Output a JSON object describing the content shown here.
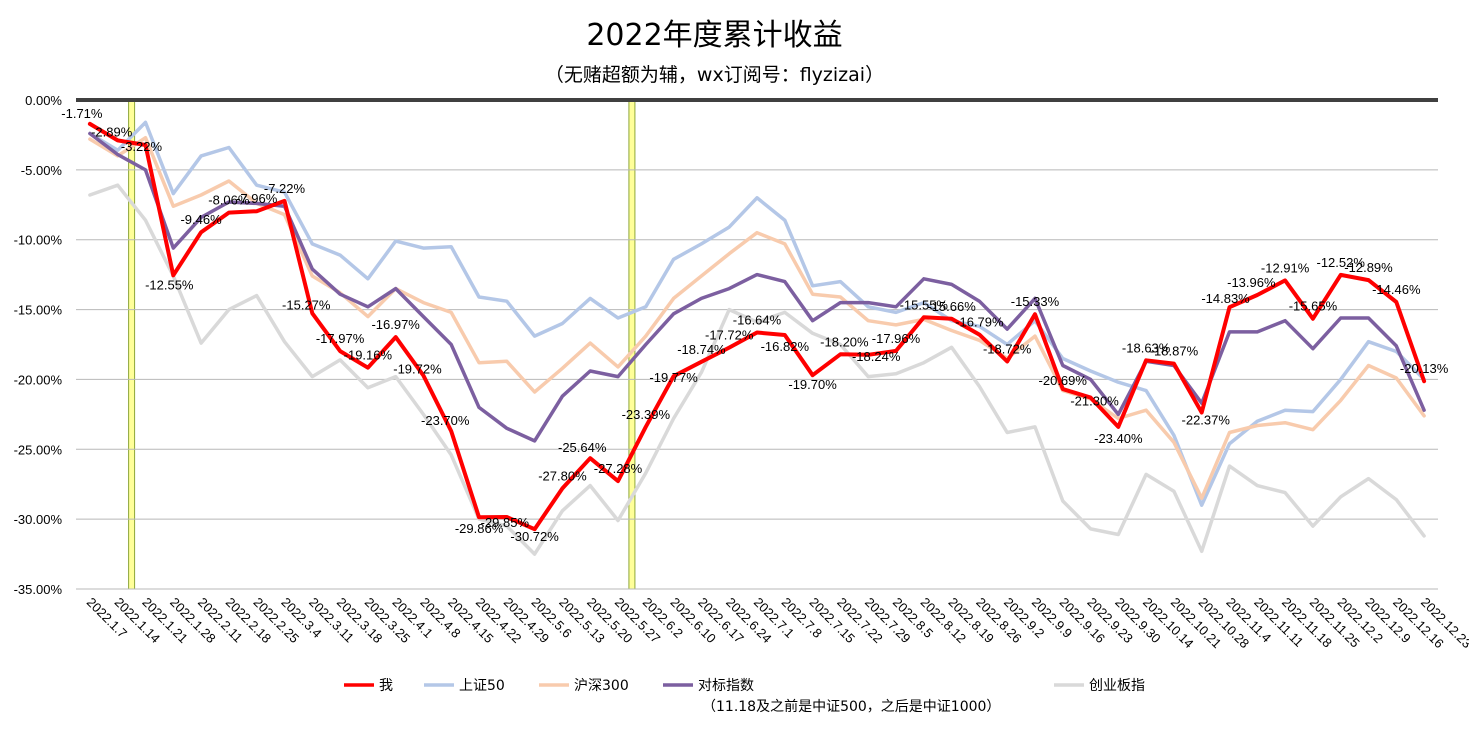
{
  "title": "2022年度累计收益",
  "subtitle": "（无赌超额为辅，wx订阅号：flyzizai）",
  "legend_note": "（11.18及之前是中证500，之后是中证1000）",
  "colors": {
    "me": "#ff0000",
    "sse50": "#b4c7e7",
    "hs300": "#f8cbad",
    "benchmark": "#7c5fa0",
    "chinext": "#d9d9d9",
    "highlight_fill": "#ffff99",
    "highlight_stroke": "#8ea63a",
    "grid": "#b8b8b8",
    "top_axis": "#404040"
  },
  "chart_data": {
    "type": "line",
    "title": "2022年度累计收益",
    "ylim": [
      -35,
      0
    ],
    "yticks": [
      "0.00%",
      "-5.00%",
      "-10.00%",
      "-15.00%",
      "-20.00%",
      "-25.00%",
      "-30.00%",
      "-35.00%"
    ],
    "grid": true,
    "legend_position": "bottom",
    "x": [
      "2022.1.7",
      "2022.1.14",
      "2022.1.21",
      "2022.1.28",
      "2022.2.11",
      "2022.2.18",
      "2022.2.25",
      "2022.3.4",
      "2022.3.11",
      "2022.3.18",
      "2022.3.25",
      "2022.4.1",
      "2022.4.8",
      "2022.4.15",
      "2022.4.22",
      "2022.4.29",
      "2022.5.6",
      "2022.5.13",
      "2022.5.20",
      "2022.5.27",
      "2022.6.2",
      "2022.6.10",
      "2022.6.17",
      "2022.6.24",
      "2022.7.1",
      "2022.7.8",
      "2022.7.15",
      "2022.7.22",
      "2022.7.29",
      "2022.8.5",
      "2022.8.12",
      "2022.8.19",
      "2022.8.26",
      "2022.9.2",
      "2022.9.9",
      "2022.9.16",
      "2022.9.23",
      "2022.9.30",
      "2022.10.14",
      "2022.10.21",
      "2022.10.28",
      "2022.11.4",
      "2022.11.11",
      "2022.11.18",
      "2022.11.25",
      "2022.12.2",
      "2022.12.9",
      "2022.12.16",
      "2022.12.23"
    ],
    "highlight_x": [
      "2022.1.21",
      "2022.6.2"
    ],
    "series": [
      {
        "name": "上证50",
        "key": "sse50",
        "values": [
          -2.4,
          -3.6,
          -1.6,
          -6.7,
          -4.0,
          -3.4,
          -6.1,
          -6.6,
          -10.3,
          -11.1,
          -12.8,
          -10.1,
          -10.6,
          -10.5,
          -14.1,
          -14.4,
          -16.9,
          -16.0,
          -14.2,
          -15.6,
          -14.8,
          -11.4,
          -10.3,
          -9.1,
          -7.0,
          -8.6,
          -13.3,
          -13.0,
          -14.8,
          -15.2,
          -14.5,
          -15.8,
          -16.2,
          -17.5,
          -15.8,
          -18.5,
          -19.4,
          -20.2,
          -20.8,
          -24.0,
          -29.0,
          -24.6,
          -23.0,
          -22.2,
          -22.3,
          -20.0,
          -17.3,
          -18.0,
          -20.0
        ]
      },
      {
        "name": "沪深300",
        "key": "hs300",
        "values": [
          -2.8,
          -4.0,
          -2.7,
          -7.6,
          -6.8,
          -5.8,
          -7.4,
          -8.2,
          -12.6,
          -13.8,
          -15.5,
          -13.5,
          -14.5,
          -15.2,
          -18.8,
          -18.7,
          -20.9,
          -19.2,
          -17.4,
          -19.1,
          -16.9,
          -14.2,
          -12.6,
          -11.0,
          -9.5,
          -10.3,
          -13.9,
          -14.1,
          -15.8,
          -16.1,
          -15.7,
          -16.5,
          -17.2,
          -18.5,
          -16.9,
          -20.8,
          -21.4,
          -22.8,
          -22.2,
          -24.5,
          -28.5,
          -23.8,
          -23.3,
          -23.1,
          -23.6,
          -21.5,
          -19.0,
          -19.9,
          -22.6
        ]
      },
      {
        "name": "对标指数",
        "key": "benchmark",
        "values": [
          -2.4,
          -3.9,
          -5.0,
          -10.6,
          -8.4,
          -7.3,
          -7.4,
          -7.6,
          -12.1,
          -13.9,
          -14.8,
          -13.5,
          -15.5,
          -17.5,
          -22.0,
          -23.5,
          -24.4,
          -21.2,
          -19.4,
          -19.8,
          -17.5,
          -15.3,
          -14.2,
          -13.5,
          -12.5,
          -13.0,
          -15.8,
          -14.5,
          -14.5,
          -14.8,
          -12.8,
          -13.2,
          -14.4,
          -16.4,
          -14.2,
          -19.0,
          -20.0,
          -22.5,
          -18.7,
          -19.0,
          -21.7,
          -16.6,
          -16.6,
          -15.8,
          -17.8,
          -15.6,
          -15.6,
          -17.6,
          -22.2
        ]
      },
      {
        "name": "创业板指",
        "key": "chinext",
        "values": [
          -6.8,
          -6.1,
          -8.6,
          -12.6,
          -17.4,
          -15.0,
          -14.0,
          -17.3,
          -19.8,
          -18.6,
          -20.6,
          -19.8,
          -22.5,
          -25.4,
          -30.0,
          -30.5,
          -32.5,
          -29.4,
          -27.6,
          -30.1,
          -26.7,
          -22.8,
          -19.5,
          -15.0,
          -15.9,
          -15.2,
          -16.7,
          -17.5,
          -19.8,
          -19.6,
          -18.8,
          -17.7,
          -20.5,
          -23.8,
          -23.4,
          -28.7,
          -30.7,
          -31.1,
          -26.8,
          -28.0,
          -32.3,
          -26.2,
          -27.6,
          -28.1,
          -30.5,
          -28.4,
          -27.1,
          -28.6,
          -31.2
        ]
      },
      {
        "name": "我",
        "key": "me",
        "values": [
          -1.71,
          -2.89,
          -3.22,
          -12.55,
          -9.46,
          -8.06,
          -7.96,
          -7.22,
          -15.27,
          -17.97,
          -19.16,
          -16.97,
          -19.72,
          -23.7,
          -29.86,
          -29.85,
          -30.72,
          -27.8,
          -25.64,
          -27.28,
          -23.39,
          -19.77,
          -18.74,
          -17.72,
          -16.64,
          -16.82,
          -19.7,
          -18.2,
          -18.24,
          -17.96,
          -15.55,
          -15.66,
          -16.79,
          -18.72,
          -15.33,
          -20.69,
          -21.3,
          -23.4,
          -18.63,
          -18.87,
          -22.37,
          -14.83,
          -13.96,
          -12.91,
          -15.65,
          -12.52,
          -12.89,
          -14.46,
          -20.13
        ]
      }
    ],
    "data_labels": [
      "-1.71%",
      "-2.89%",
      "-3.22%",
      "-12.55%",
      "-9.46%",
      "-8.06%",
      "-7.96%",
      "-7.22%",
      "-15.27%",
      "-17.97%",
      "-19.16%",
      "-16.97%",
      "-19.72%",
      "-23.70%",
      "-29.86%",
      "-29.85%",
      "-30.72%",
      "-27.80%",
      "-25.64%",
      "-27.28%",
      "-23.39%",
      "-19.77%",
      "-18.74%",
      "-17.72%",
      "-16.64%",
      "-16.82%",
      "-19.70%",
      "-18.20%",
      "-18.24%",
      "-17.96%",
      "-15.55%",
      "-15.66%",
      "-16.79%",
      "-18.72%",
      "-15.33%",
      "-20.69%",
      "-21.30%",
      "-23.40%",
      "-18.63%",
      "-18.87%",
      "-22.37%",
      "-14.83%",
      "-13.96%",
      "-12.91%",
      "-15.65%",
      "-12.52%",
      "-12.89%",
      "-14.46%",
      "-20.13%"
    ],
    "legend": [
      {
        "label": "我",
        "key": "me"
      },
      {
        "label": "上证50",
        "key": "sse50"
      },
      {
        "label": "沪深300",
        "key": "hs300"
      },
      {
        "label": "对标指数",
        "key": "benchmark"
      },
      {
        "label": "创业板指",
        "key": "chinext"
      }
    ]
  }
}
